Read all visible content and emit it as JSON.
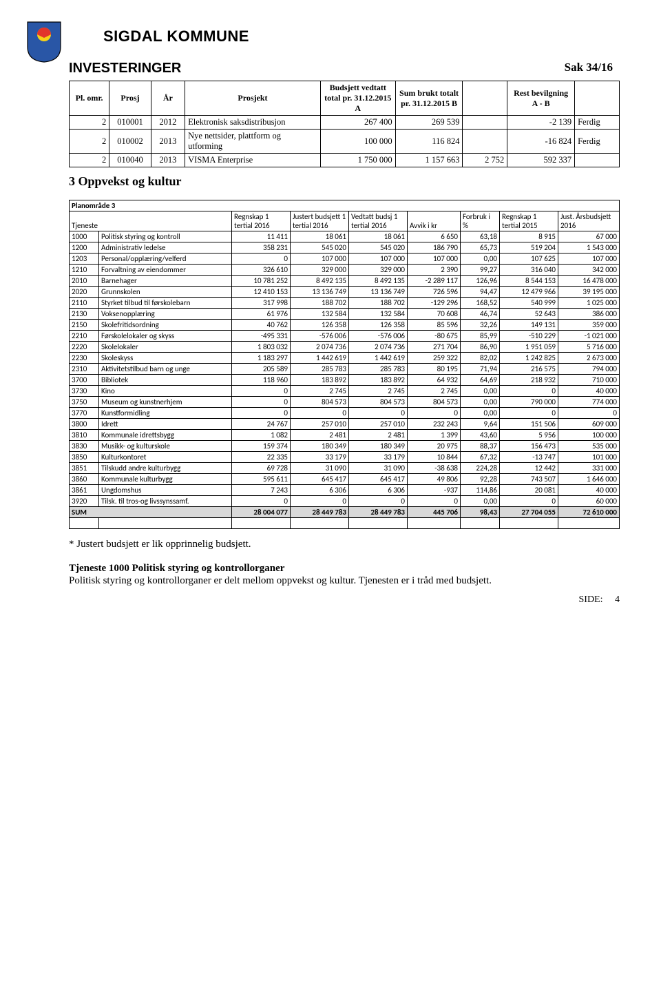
{
  "header": {
    "kommune": "SIGDAL KOMMUNE",
    "sak": "Sak  34/16",
    "investeringer_title": "INVESTERINGER"
  },
  "inv_table": {
    "columns": [
      "Pl. omr.",
      "Prosj",
      "År",
      "Prosjekt",
      "Budsjett vedtatt total pr. 31.12.2015 A",
      "Sum brukt totalt pr. 31.12.2015 B",
      "",
      "Rest bevilgning A - B",
      ""
    ],
    "rows": [
      [
        "2",
        "010001",
        "2012",
        "Elektronisk saksdistribusjon",
        "267 400",
        "269 539",
        "",
        "-2 139",
        "Ferdig"
      ],
      [
        "2",
        "010002",
        "2013",
        "Nye nettsider, plattform og utforming",
        "100 000",
        "116 824",
        "",
        "-16 824",
        "Ferdig"
      ],
      [
        "2",
        "010040",
        "2013",
        "VISMA Enterprise",
        "1 750 000",
        "1 157 663",
        "2 752",
        "592 337",
        ""
      ]
    ]
  },
  "section_heading": "3 Oppvekst og kultur",
  "plan_table": {
    "title": "Planområde 3",
    "columns": [
      "Tjeneste",
      "Regnskap 1 tertial 2016",
      "Justert budsjett 1 tertial 2016",
      "Vedtatt budsj 1 tertial 2016",
      "Avvik i kr",
      "Forbruk i %",
      "Regnskap 1 tertial 2015",
      "Just. Årsbudsjett 2016"
    ],
    "rows": [
      [
        "1000",
        "Politisk styring og kontroll",
        "11 411",
        "18 061",
        "18 061",
        "6 650",
        "63,18",
        "8 915",
        "67 000"
      ],
      [
        "1200",
        "Administrativ ledelse",
        "358 231",
        "545 020",
        "545 020",
        "186 790",
        "65,73",
        "519 204",
        "1 543 000"
      ],
      [
        "1203",
        "Personal/opplæring/velferd",
        "0",
        "107 000",
        "107 000",
        "107 000",
        "0,00",
        "107 625",
        "107 000"
      ],
      [
        "1210",
        "Forvaltning av eiendommer",
        "326 610",
        "329 000",
        "329 000",
        "2 390",
        "99,27",
        "316 040",
        "342 000"
      ],
      [
        "2010",
        "Barnehager",
        "10 781 252",
        "8 492 135",
        "8 492 135",
        "-2 289 117",
        "126,96",
        "8 544 153",
        "16 478 000"
      ],
      [
        "2020",
        "Grunnskolen",
        "12 410 153",
        "13 136 749",
        "13 136 749",
        "726 596",
        "94,47",
        "12 479 966",
        "39 195 000"
      ],
      [
        "2110",
        "Styrket tilbud til førskolebarn",
        "317 998",
        "188 702",
        "188 702",
        "-129 296",
        "168,52",
        "540 999",
        "1 025 000"
      ],
      [
        "2130",
        "Voksenopplæring",
        "61 976",
        "132 584",
        "132 584",
        "70 608",
        "46,74",
        "52 643",
        "386 000"
      ],
      [
        "2150",
        "Skolefritidsordning",
        "40 762",
        "126 358",
        "126 358",
        "85 596",
        "32,26",
        "149 131",
        "359 000"
      ],
      [
        "2210",
        "Førskolelokaler og skyss",
        "-495 331",
        "-576 006",
        "-576 006",
        "-80 675",
        "85,99",
        "-510 229",
        "-1 021 000"
      ],
      [
        "2220",
        "Skolelokaler",
        "1 803 032",
        "2 074 736",
        "2 074 736",
        "271 704",
        "86,90",
        "1 951 059",
        "5 716 000"
      ],
      [
        "2230",
        "Skoleskyss",
        "1 183 297",
        "1 442 619",
        "1 442 619",
        "259 322",
        "82,02",
        "1 242 825",
        "2 673 000"
      ],
      [
        "2310",
        "Aktivitetstilbud barn og unge",
        "205 589",
        "285 783",
        "285 783",
        "80 195",
        "71,94",
        "216 575",
        "794 000"
      ],
      [
        "3700",
        "Bibliotek",
        "118 960",
        "183 892",
        "183 892",
        "64 932",
        "64,69",
        "218 932",
        "710 000"
      ],
      [
        "3730",
        "Kino",
        "0",
        "2 745",
        "2 745",
        "2 745",
        "0,00",
        "0",
        "40 000"
      ],
      [
        "3750",
        "Museum og kunstnerhjem",
        "0",
        "804 573",
        "804 573",
        "804 573",
        "0,00",
        "790 000",
        "774 000"
      ],
      [
        "3770",
        "Kunstformidling",
        "0",
        "0",
        "0",
        "0",
        "0,00",
        "0",
        "0"
      ],
      [
        "3800",
        "Idrett",
        "24 767",
        "257 010",
        "257 010",
        "232 243",
        "9,64",
        "151 506",
        "609 000"
      ],
      [
        "3810",
        "Kommunale idrettsbygg",
        "1 082",
        "2 481",
        "2 481",
        "1 399",
        "43,60",
        "5 956",
        "100 000"
      ],
      [
        "3830",
        "Musikk- og kulturskole",
        "159 374",
        "180 349",
        "180 349",
        "20 975",
        "88,37",
        "156 473",
        "535 000"
      ],
      [
        "3850",
        "Kulturkontoret",
        "22 335",
        "33 179",
        "33 179",
        "10 844",
        "67,32",
        "-13 747",
        "101 000"
      ],
      [
        "3851",
        "Tilskudd andre kulturbygg",
        "69 728",
        "31 090",
        "31 090",
        "-38 638",
        "224,28",
        "12 442",
        "331 000"
      ],
      [
        "3860",
        "Kommunale kulturbygg",
        "595 611",
        "645 417",
        "645 417",
        "49 806",
        "92,28",
        "743 507",
        "1 646 000"
      ],
      [
        "3861",
        "Ungdomshus",
        "7 243",
        "6 306",
        "6 306",
        "-937",
        "114,86",
        "20 081",
        "40 000"
      ],
      [
        "3920",
        "Tilsk. til tros-og  livssynssamf.",
        "0",
        "0",
        "0",
        "0",
        "0,00",
        "0",
        "60 000"
      ]
    ],
    "sum_row": [
      "SUM",
      "28 004 077",
      "28 449 783",
      "28 449 783",
      "445 706",
      "98,43",
      "27 704 055",
      "72 610 000"
    ]
  },
  "footnote": "* Justert budsjett er lik opprinnelig budsjett.",
  "body": {
    "heading": "Tjeneste 1000  Politisk styring og kontrollorganer",
    "para": "Politisk styring og kontrollorganer er delt mellom oppvekst og kultur. Tjenesten er i tråd med budsjett."
  },
  "footer": {
    "side_label": "SIDE:",
    "side_num": "4"
  },
  "colors": {
    "sum_bg": "#d9d9d9",
    "shield_blue": "#2956a6",
    "shield_yellow": "#f7d117",
    "shield_red": "#e2342b"
  }
}
